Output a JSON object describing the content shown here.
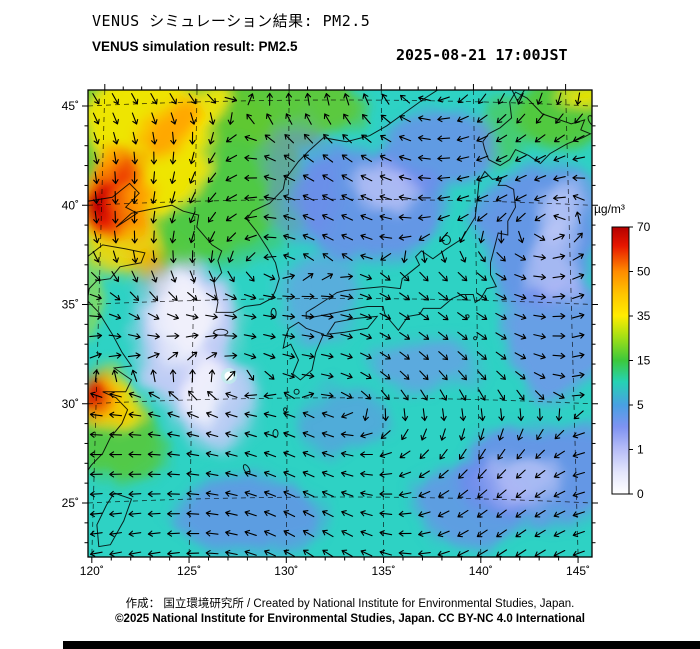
{
  "header": {
    "title_ja": "VENUS シミュレーション結果: PM2.5",
    "title_en": "VENUS simulation result: PM2.5",
    "timestamp": "2025-08-21 17:00JST"
  },
  "footer": {
    "credit": "作成： 国立環境研究所 / Created by National Institute for Environmental Studies, Japan.",
    "copyright": "©2025 National Institute for Environmental Studies, Japan. CC BY-NC 4.0 International"
  },
  "chart_data": {
    "type": "heatmap",
    "title": "VENUS simulation result: PM2.5",
    "datetime": "2025-08-21 17:00JST",
    "region": "East Asia (Japan, Korea, eastern China and surrounding seas)",
    "x_axis": {
      "name": "longitude",
      "range": [
        119.6,
        146.0
      ],
      "ticks": [
        "120˚",
        "125˚",
        "130˚",
        "135˚",
        "140˚",
        "145˚"
      ],
      "tick_values": [
        120,
        125,
        130,
        135,
        140,
        145
      ],
      "minor_tick_step_deg": 1
    },
    "y_axis": {
      "name": "latitude",
      "range": [
        22.1,
        45.6
      ],
      "ticks": [
        "25˚",
        "30˚",
        "35˚",
        "40˚",
        "45˚"
      ],
      "tick_values": [
        25,
        30,
        35,
        40,
        45
      ],
      "minor_tick_step_deg": 1
    },
    "grid": "dashed black lat/lon graticule every 5 degrees",
    "overlay": "surface wind vectors drawn as small black arrows on a ~20 px grid",
    "colorbar": {
      "unit": "µg/m³",
      "tick_labels": [
        "70",
        "50",
        "35",
        "15",
        "5",
        "1",
        "0"
      ],
      "tick_values": [
        70,
        50,
        35,
        15,
        5,
        1,
        0
      ],
      "orientation": "vertical, right side, maximum at top",
      "gradient_stops": [
        {
          "pos": 0,
          "color": "#b40000"
        },
        {
          "pos": 7,
          "color": "#e61600"
        },
        {
          "pos": 16.7,
          "color": "#ff8c00"
        },
        {
          "pos": 25,
          "color": "#ffc400"
        },
        {
          "pos": 33.3,
          "color": "#ffec00"
        },
        {
          "pos": 41,
          "color": "#a6e014"
        },
        {
          "pos": 50,
          "color": "#3cc83c"
        },
        {
          "pos": 58,
          "color": "#26d2b4"
        },
        {
          "pos": 66.7,
          "color": "#49a0e2"
        },
        {
          "pos": 75,
          "color": "#7f93f2"
        },
        {
          "pos": 83.3,
          "color": "#b7bdf7"
        },
        {
          "pos": 92,
          "color": "#e4e6fc"
        },
        {
          "pos": 100,
          "color": "#ffffff"
        }
      ]
    },
    "field_features": [
      {
        "area": "Liaoning / Bohai coast (~120-123E, 38-41N)",
        "pm25": "35-70+ (orange-red plume)"
      },
      {
        "area": "Northeast China and northern Korea (120-128E, 38-46N)",
        "pm25": "15-35 (green) with yellow patches"
      },
      {
        "area": "Yangtze delta coast (~120-121E, 29-31N)",
        "pm25": "35-70 (red hotspot with orange/yellow halo)"
      },
      {
        "area": "Yellow Sea (123-126E, 31-37N)",
        "pm25": "0-1 (white / pale lavender)"
      },
      {
        "area": "Sea of Japan and Pacific east of Japan",
        "pm25": "1-5 (blue/periwinkle mottled patches)"
      },
      {
        "area": "Most other ocean areas incl. south of 30N",
        "pm25": "5-15 (turquoise background)"
      },
      {
        "area": "Northeast corner near Sakhalin / Kuril (143-146E, 43-46N)",
        "pm25": "15-40 (green with yellow)"
      },
      {
        "area": "Small clear eye ~127E, 31N",
        "pm25": "<1 (tiny white spot)"
      }
    ]
  }
}
